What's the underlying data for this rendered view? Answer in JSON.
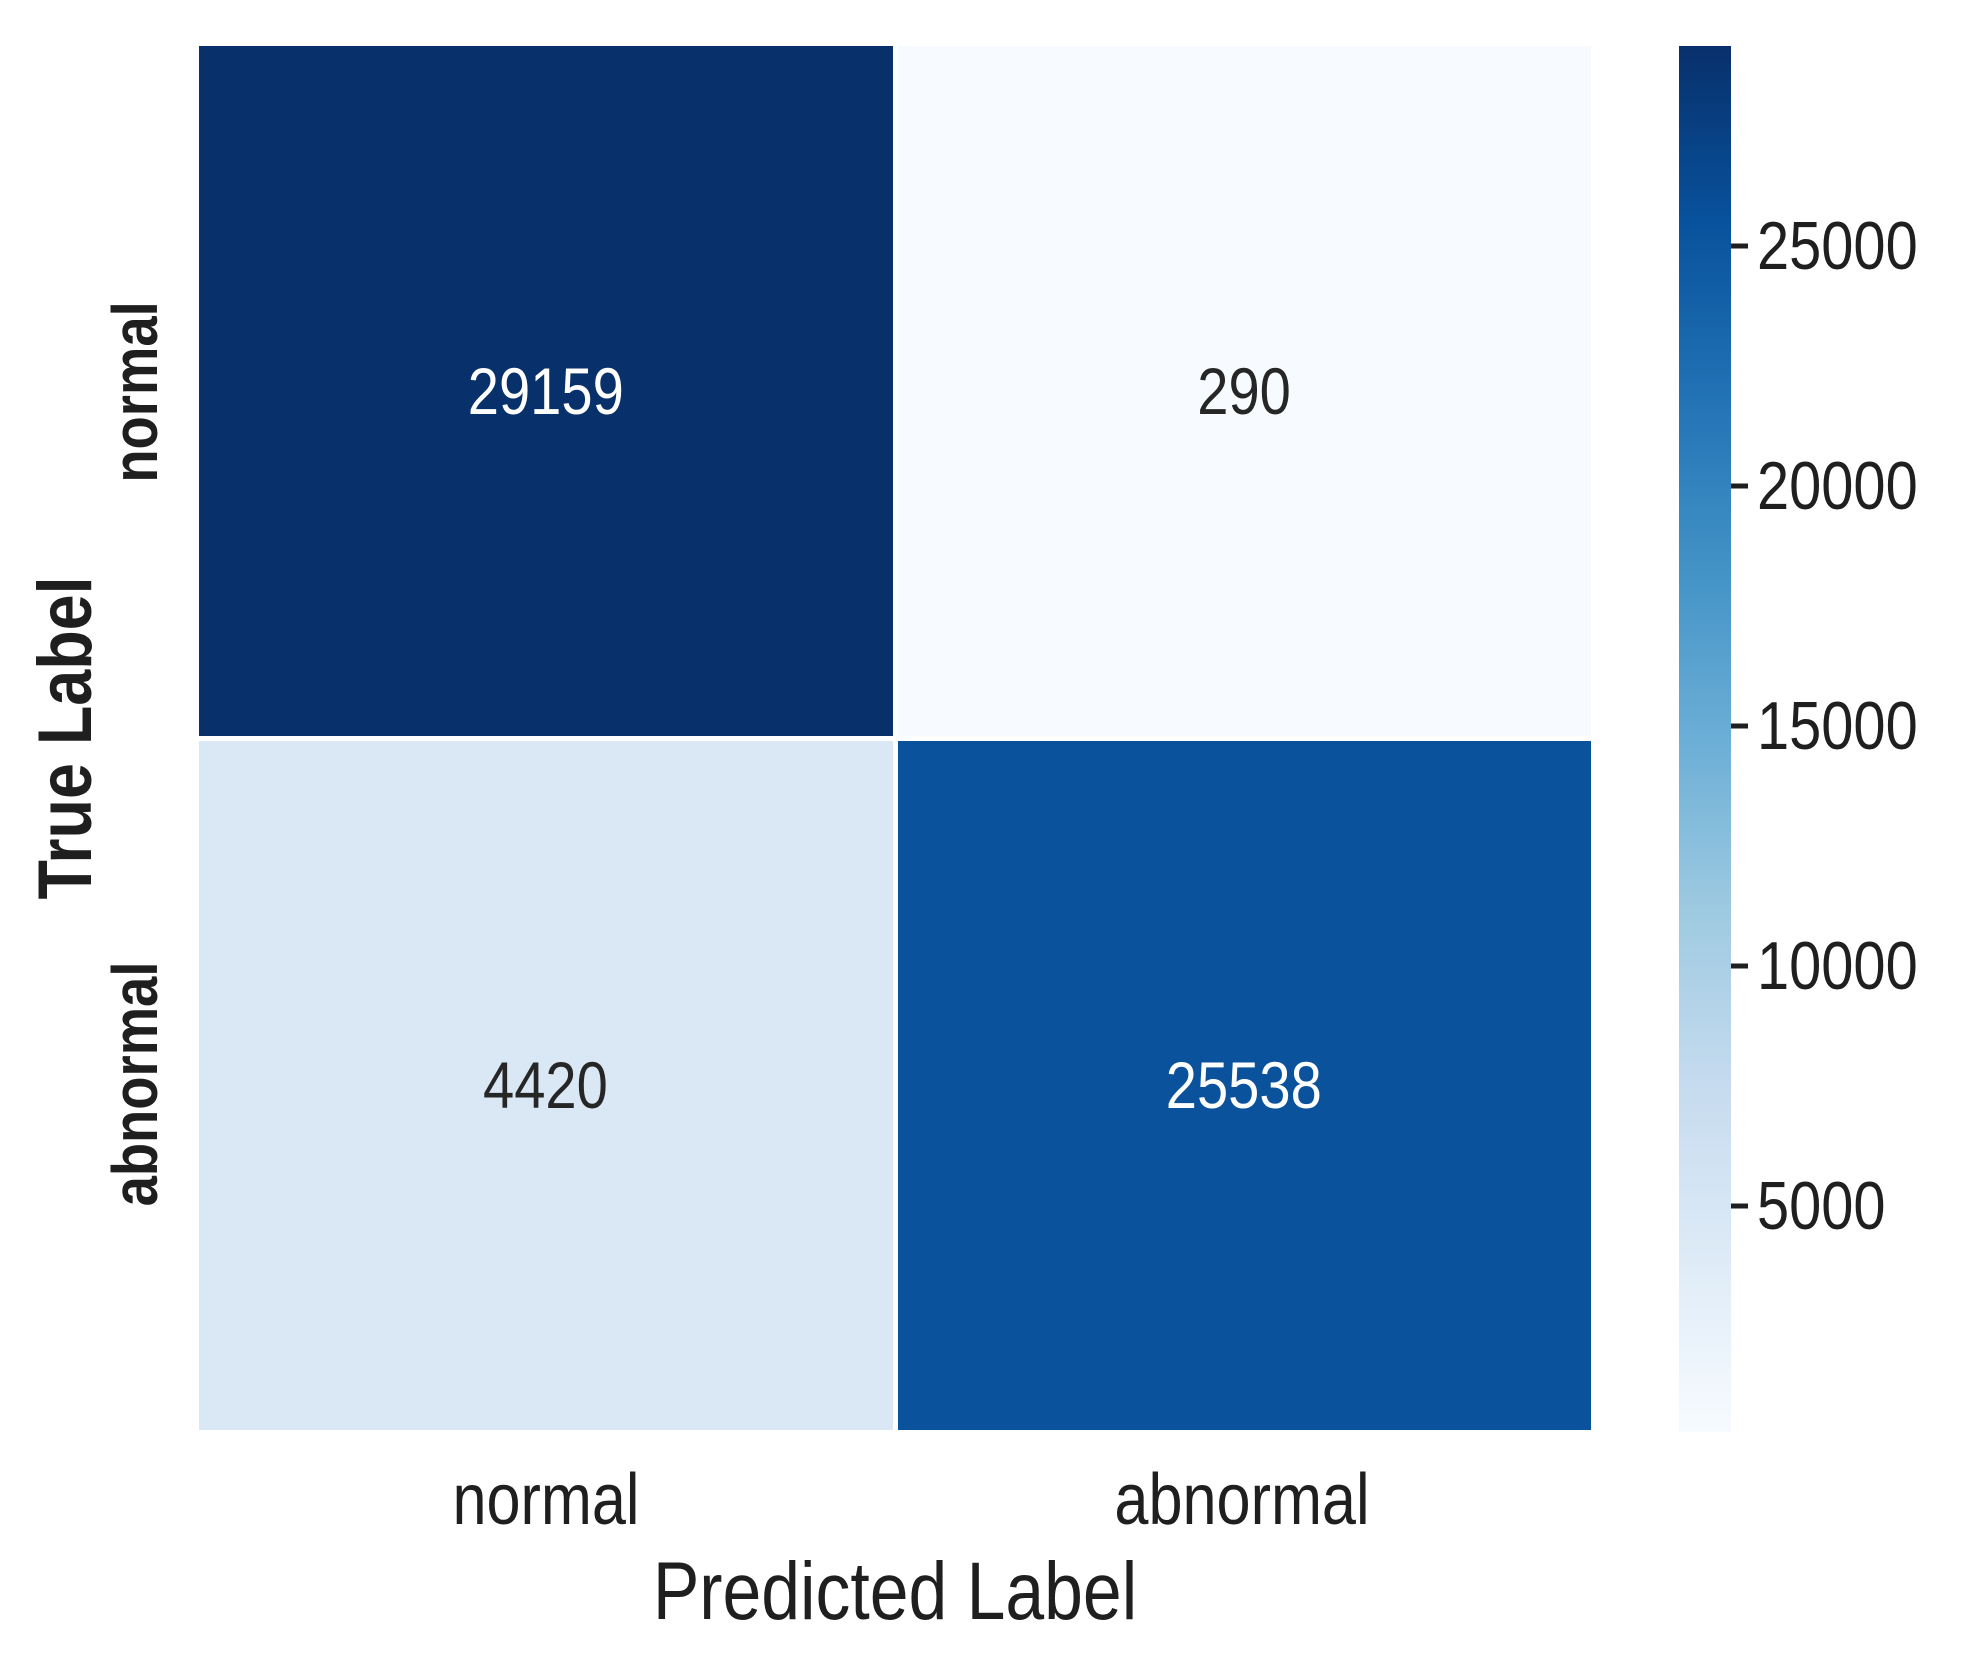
{
  "chart_data": {
    "type": "heatmap",
    "title": "",
    "xlabel": "Predicted Label",
    "ylabel": "True Label",
    "x_tick_labels": [
      "normal",
      "abnormal"
    ],
    "y_tick_labels": [
      "normal",
      "abnormal"
    ],
    "matrix": [
      [
        29159,
        290
      ],
      [
        4420,
        25538
      ]
    ],
    "vmin": 290,
    "vmax": 29159,
    "colormap": "Blues",
    "grid": false,
    "legend_position": "right-colorbar",
    "colorbar_ticks": [
      25000,
      20000,
      15000,
      10000,
      5000
    ],
    "colorbar_gradient": [
      {
        "pos": 0,
        "color": "#08306b"
      },
      {
        "pos": 12.5,
        "color": "#08519c"
      },
      {
        "pos": 25,
        "color": "#2171b5"
      },
      {
        "pos": 37.5,
        "color": "#4292c6"
      },
      {
        "pos": 50,
        "color": "#6baed6"
      },
      {
        "pos": 62.5,
        "color": "#9ecae1"
      },
      {
        "pos": 75,
        "color": "#c6dbef"
      },
      {
        "pos": 87.5,
        "color": "#deebf7"
      },
      {
        "pos": 100,
        "color": "#f7fbff"
      }
    ],
    "cell_fills": [
      [
        "#08306b",
        "#f7fbff"
      ],
      [
        "#dae8f6",
        "#0a529c"
      ]
    ],
    "cell_text_colors": [
      [
        "#ffffff",
        "#262626"
      ],
      [
        "#262626",
        "#ffffff"
      ]
    ],
    "axis_text_color": "#1f1f1f",
    "cell_gap_color": "#ffffff"
  }
}
